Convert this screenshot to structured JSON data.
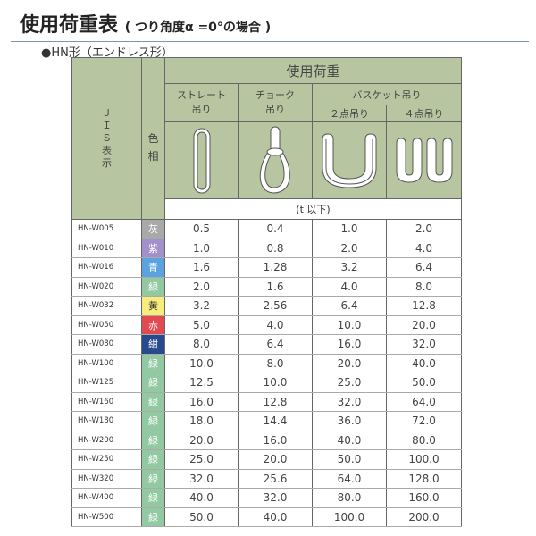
{
  "title": "使用荷重表",
  "subtitle": "( つり角度α =0°の場合 )",
  "section": "●HN形（エンドレス形）",
  "header": {
    "jis": "ＪＩＳ表示",
    "color": "色相",
    "load": "使用荷重",
    "straight": "ストレート吊り",
    "straight_l1": "ストレート",
    "straight_l2": "吊り",
    "choke_l1": "チョーク",
    "choke_l2": "吊り",
    "basket": "バスケット吊り",
    "two_point": "２点吊り",
    "four_point": "４点吊り",
    "unit": "(t 以下)"
  },
  "rows": [
    {
      "code": "HN-W005",
      "color": "灰",
      "hex": "#a9a9a9",
      "straight": "0.5",
      "choke": "0.4",
      "two": "1.0",
      "four": "2.0"
    },
    {
      "code": "HN-W010",
      "color": "紫",
      "hex": "#a190c9",
      "straight": "1.0",
      "choke": "0.8",
      "two": "2.0",
      "four": "4.0"
    },
    {
      "code": "HN-W016",
      "color": "青",
      "hex": "#5ba3de",
      "straight": "1.6",
      "choke": "1.28",
      "two": "3.2",
      "four": "6.4"
    },
    {
      "code": "HN-W020",
      "color": "緑",
      "hex": "#92c9a2",
      "straight": "2.0",
      "choke": "1.6",
      "two": "4.0",
      "four": "8.0"
    },
    {
      "code": "HN-W032",
      "color": "黄",
      "hex": "#f7ec7c",
      "straight": "3.2",
      "choke": "2.56",
      "two": "6.4",
      "four": "12.8"
    },
    {
      "code": "HN-W050",
      "color": "赤",
      "hex": "#e24a52",
      "straight": "5.0",
      "choke": "4.0",
      "two": "10.0",
      "four": "20.0"
    },
    {
      "code": "HN-W080",
      "color": "紺",
      "hex": "#284a8c",
      "straight": "8.0",
      "choke": "6.4",
      "two": "16.0",
      "four": "32.0"
    },
    {
      "code": "HN-W100",
      "color": "緑",
      "hex": "#92c9a2",
      "straight": "10.0",
      "choke": "8.0",
      "two": "20.0",
      "four": "40.0"
    },
    {
      "code": "HN-W125",
      "color": "緑",
      "hex": "#92c9a2",
      "straight": "12.5",
      "choke": "10.0",
      "two": "25.0",
      "four": "50.0"
    },
    {
      "code": "HN-W160",
      "color": "緑",
      "hex": "#92c9a2",
      "straight": "16.0",
      "choke": "12.8",
      "two": "32.0",
      "four": "64.0"
    },
    {
      "code": "HN-W180",
      "color": "緑",
      "hex": "#92c9a2",
      "straight": "18.0",
      "choke": "14.4",
      "two": "36.0",
      "four": "72.0"
    },
    {
      "code": "HN-W200",
      "color": "緑",
      "hex": "#92c9a2",
      "straight": "20.0",
      "choke": "16.0",
      "two": "40.0",
      "four": "80.0"
    },
    {
      "code": "HN-W250",
      "color": "緑",
      "hex": "#92c9a2",
      "straight": "25.0",
      "choke": "20.0",
      "two": "50.0",
      "four": "100.0"
    },
    {
      "code": "HN-W320",
      "color": "緑",
      "hex": "#92c9a2",
      "straight": "32.0",
      "choke": "25.6",
      "two": "64.0",
      "four": "128.0"
    },
    {
      "code": "HN-W400",
      "color": "緑",
      "hex": "#92c9a2",
      "straight": "40.0",
      "choke": "32.0",
      "two": "80.0",
      "four": "160.0"
    },
    {
      "code": "HN-W500",
      "color": "緑",
      "hex": "#92c9a2",
      "straight": "50.0",
      "choke": "40.0",
      "two": "100.0",
      "four": "200.0"
    }
  ]
}
